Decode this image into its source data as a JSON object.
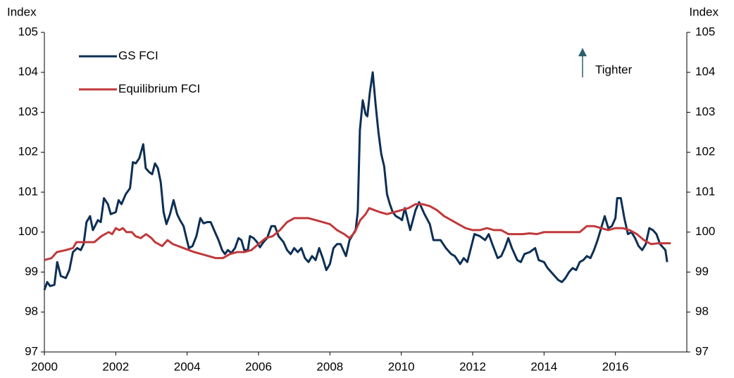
{
  "chart_data": {
    "type": "line",
    "y_label": "Index",
    "y2_label": "Index",
    "xlim": [
      2000,
      2018
    ],
    "xticks": [
      2000,
      2002,
      2004,
      2006,
      2008,
      2010,
      2012,
      2014,
      2016
    ],
    "ylim": [
      97,
      105
    ],
    "yticks": [
      97,
      98,
      99,
      100,
      101,
      102,
      103,
      104,
      105
    ],
    "y2lim": [
      97,
      105
    ],
    "y2ticks": [
      97,
      98,
      99,
      100,
      101,
      102,
      103,
      104,
      105
    ],
    "legend": "upper left",
    "annotations": [
      {
        "text": "Tighter"
      }
    ],
    "series": [
      {
        "name": "GS FCI",
        "color": "#0d2f55",
        "x": [
          2000.0,
          2000.08,
          2000.16,
          2000.28,
          2000.36,
          2000.46,
          2000.6,
          2000.7,
          2000.8,
          2000.92,
          2001.02,
          2001.1,
          2001.18,
          2001.28,
          2001.36,
          2001.5,
          2001.58,
          2001.67,
          2001.78,
          2001.86,
          2002.0,
          2002.08,
          2002.16,
          2002.28,
          2002.4,
          2002.48,
          2002.56,
          2002.66,
          2002.77,
          2002.84,
          2002.94,
          2003.02,
          2003.1,
          2003.18,
          2003.26,
          2003.34,
          2003.42,
          2003.52,
          2003.62,
          2003.72,
          2003.8,
          2003.9,
          2003.98,
          2004.05,
          2004.15,
          2004.26,
          2004.37,
          2004.46,
          2004.56,
          2004.66,
          2004.78,
          2004.88,
          2004.98,
          2005.06,
          2005.14,
          2005.24,
          2005.34,
          2005.44,
          2005.52,
          2005.6,
          2005.7,
          2005.76,
          2005.86,
          2005.96,
          2006.04,
          2006.14,
          2006.24,
          2006.36,
          2006.46,
          2006.56,
          2006.7,
          2006.8,
          2006.9,
          2007.0,
          2007.1,
          2007.2,
          2007.3,
          2007.4,
          2007.5,
          2007.6,
          2007.7,
          2007.8,
          2007.9,
          2008.0,
          2008.1,
          2008.2,
          2008.3,
          2008.45,
          2008.55,
          2008.65,
          2008.72,
          2008.78,
          2008.84,
          2008.92,
          2009.0,
          2009.05,
          2009.12,
          2009.2,
          2009.28,
          2009.36,
          2009.44,
          2009.52,
          2009.6,
          2009.68,
          2009.76,
          2009.85,
          2009.95,
          2010.02,
          2010.1,
          2010.25,
          2010.4,
          2010.5,
          2010.65,
          2010.8,
          2010.9,
          2011.1,
          2011.25,
          2011.4,
          2011.5,
          2011.65,
          2011.75,
          2011.85,
          2011.95,
          2012.05,
          2012.2,
          2012.35,
          2012.45,
          2012.55,
          2012.7,
          2012.8,
          2012.9,
          2013.0,
          2013.1,
          2013.25,
          2013.35,
          2013.45,
          2013.6,
          2013.75,
          2013.85,
          2014.0,
          2014.1,
          2014.25,
          2014.4,
          2014.5,
          2014.6,
          2014.7,
          2014.8,
          2014.9,
          2015.0,
          2015.1,
          2015.2,
          2015.3,
          2015.4,
          2015.5,
          2015.6,
          2015.7,
          2015.8,
          2015.9,
          2016.0,
          2016.05,
          2016.15,
          2016.25,
          2016.35,
          2016.45,
          2016.55,
          2016.65,
          2016.75,
          2016.85,
          2016.95,
          2017.05,
          2017.15,
          2017.25,
          2017.4,
          2017.45
        ],
        "values": [
          98.55,
          98.75,
          98.65,
          98.68,
          99.25,
          98.9,
          98.85,
          99.05,
          99.5,
          99.6,
          99.55,
          99.7,
          100.25,
          100.4,
          100.05,
          100.3,
          100.25,
          100.85,
          100.7,
          100.45,
          100.5,
          100.8,
          100.7,
          100.95,
          101.1,
          101.75,
          101.72,
          101.85,
          102.2,
          101.6,
          101.5,
          101.45,
          101.72,
          101.6,
          101.25,
          100.5,
          100.2,
          100.45,
          100.8,
          100.45,
          100.3,
          100.15,
          99.85,
          99.6,
          99.65,
          99.9,
          100.35,
          100.22,
          100.25,
          100.25,
          100.0,
          99.8,
          99.55,
          99.45,
          99.55,
          99.48,
          99.6,
          99.85,
          99.8,
          99.55,
          99.55,
          99.9,
          99.85,
          99.75,
          99.62,
          99.75,
          99.85,
          100.15,
          100.15,
          99.9,
          99.75,
          99.55,
          99.45,
          99.6,
          99.5,
          99.6,
          99.35,
          99.25,
          99.4,
          99.3,
          99.6,
          99.35,
          99.05,
          99.2,
          99.6,
          99.7,
          99.7,
          99.4,
          99.8,
          99.95,
          100.05,
          100.5,
          102.55,
          103.3,
          102.95,
          102.9,
          103.5,
          104.0,
          103.2,
          102.5,
          101.95,
          101.65,
          100.95,
          100.7,
          100.5,
          100.4,
          100.35,
          100.3,
          100.6,
          100.05,
          100.55,
          100.75,
          100.45,
          100.2,
          99.8,
          99.8,
          99.6,
          99.45,
          99.4,
          99.2,
          99.35,
          99.25,
          99.6,
          99.95,
          99.9,
          99.8,
          99.95,
          99.7,
          99.35,
          99.4,
          99.6,
          99.85,
          99.6,
          99.3,
          99.25,
          99.45,
          99.5,
          99.6,
          99.3,
          99.25,
          99.1,
          98.95,
          98.8,
          98.75,
          98.85,
          99.0,
          99.1,
          99.05,
          99.25,
          99.3,
          99.4,
          99.35,
          99.55,
          99.8,
          100.1,
          100.4,
          100.1,
          100.15,
          100.35,
          100.85,
          100.85,
          100.35,
          99.95,
          100.0,
          99.85,
          99.65,
          99.55,
          99.7,
          100.1,
          100.05,
          99.95,
          99.7,
          99.55,
          99.25
        ]
      },
      {
        "name": "Equilibrium FCI",
        "color": "#c0393b",
        "x": [
          2000.0,
          2000.2,
          2000.35,
          2000.6,
          2000.8,
          2000.9,
          2001.2,
          2001.4,
          2001.6,
          2001.8,
          2001.9,
          2002.0,
          2002.1,
          2002.2,
          2002.3,
          2002.45,
          2002.55,
          2002.7,
          2002.85,
          2003.0,
          2003.1,
          2003.3,
          2003.45,
          2003.6,
          2003.75,
          2003.9,
          2004.05,
          2004.2,
          2004.4,
          2004.6,
          2004.8,
          2005.0,
          2005.2,
          2005.4,
          2005.6,
          2005.8,
          2006.0,
          2006.2,
          2006.4,
          2006.6,
          2006.8,
          2007.0,
          2007.2,
          2007.4,
          2007.6,
          2007.8,
          2008.0,
          2008.2,
          2008.4,
          2008.55,
          2008.7,
          2008.85,
          2009.0,
          2009.1,
          2009.25,
          2009.4,
          2009.6,
          2009.8,
          2010.0,
          2010.2,
          2010.4,
          2010.6,
          2010.8,
          2011.0,
          2011.2,
          2011.4,
          2011.6,
          2011.8,
          2012.0,
          2012.2,
          2012.4,
          2012.6,
          2012.8,
          2013.0,
          2013.2,
          2013.4,
          2013.6,
          2013.8,
          2014.0,
          2014.2,
          2014.4,
          2014.6,
          2014.8,
          2015.0,
          2015.2,
          2015.4,
          2015.6,
          2015.8,
          2016.0,
          2016.2,
          2016.4,
          2016.6,
          2016.8,
          2017.0,
          2017.2,
          2017.4,
          2017.55
        ],
        "values": [
          99.3,
          99.35,
          99.5,
          99.55,
          99.6,
          99.75,
          99.75,
          99.75,
          99.9,
          100.0,
          99.95,
          100.1,
          100.05,
          100.1,
          100.0,
          100.0,
          99.9,
          99.85,
          99.95,
          99.85,
          99.75,
          99.65,
          99.8,
          99.7,
          99.65,
          99.6,
          99.55,
          99.5,
          99.45,
          99.4,
          99.35,
          99.35,
          99.45,
          99.5,
          99.5,
          99.55,
          99.7,
          99.85,
          99.9,
          100.05,
          100.25,
          100.35,
          100.35,
          100.35,
          100.3,
          100.25,
          100.2,
          100.05,
          99.95,
          99.85,
          100.0,
          100.3,
          100.45,
          100.6,
          100.55,
          100.5,
          100.45,
          100.5,
          100.55,
          100.6,
          100.7,
          100.7,
          100.65,
          100.55,
          100.4,
          100.3,
          100.2,
          100.1,
          100.05,
          100.05,
          100.1,
          100.05,
          100.05,
          99.95,
          99.95,
          99.95,
          99.97,
          99.95,
          100.0,
          100.0,
          100.0,
          100.0,
          100.0,
          100.0,
          100.15,
          100.15,
          100.1,
          100.05,
          100.1,
          100.1,
          100.05,
          99.95,
          99.8,
          99.7,
          99.72,
          99.72,
          99.72
        ]
      }
    ]
  }
}
